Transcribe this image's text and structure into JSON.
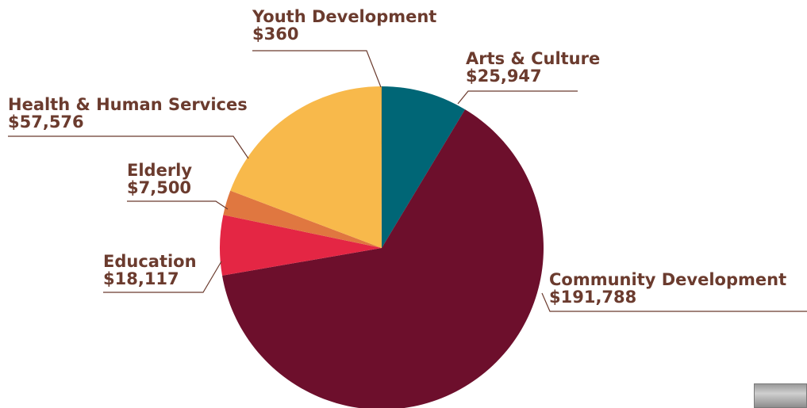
{
  "chart_data": {
    "type": "pie",
    "slices": [
      {
        "name": "Arts & Culture",
        "value": 25947,
        "value_label": "$25,947",
        "color": "#006676"
      },
      {
        "name": "Community Development",
        "value": 191788,
        "value_label": "$191,788",
        "color": "#6d0f2c"
      },
      {
        "name": "Education",
        "value": 18117,
        "value_label": "$18,117",
        "color": "#e42644"
      },
      {
        "name": "Elderly",
        "value": 7500,
        "value_label": "$7,500",
        "color": "#e07740"
      },
      {
        "name": "Health & Human Services",
        "value": 57576,
        "value_label": "$57,576",
        "color": "#f8b94b"
      },
      {
        "name": "Youth Development",
        "value": 360,
        "value_label": "$360",
        "color": "#e8ac40"
      }
    ],
    "start": "12 o'clock",
    "direction": "clockwise"
  },
  "label_color": "#6b3b2e",
  "leader_color": "#6b3b2e"
}
